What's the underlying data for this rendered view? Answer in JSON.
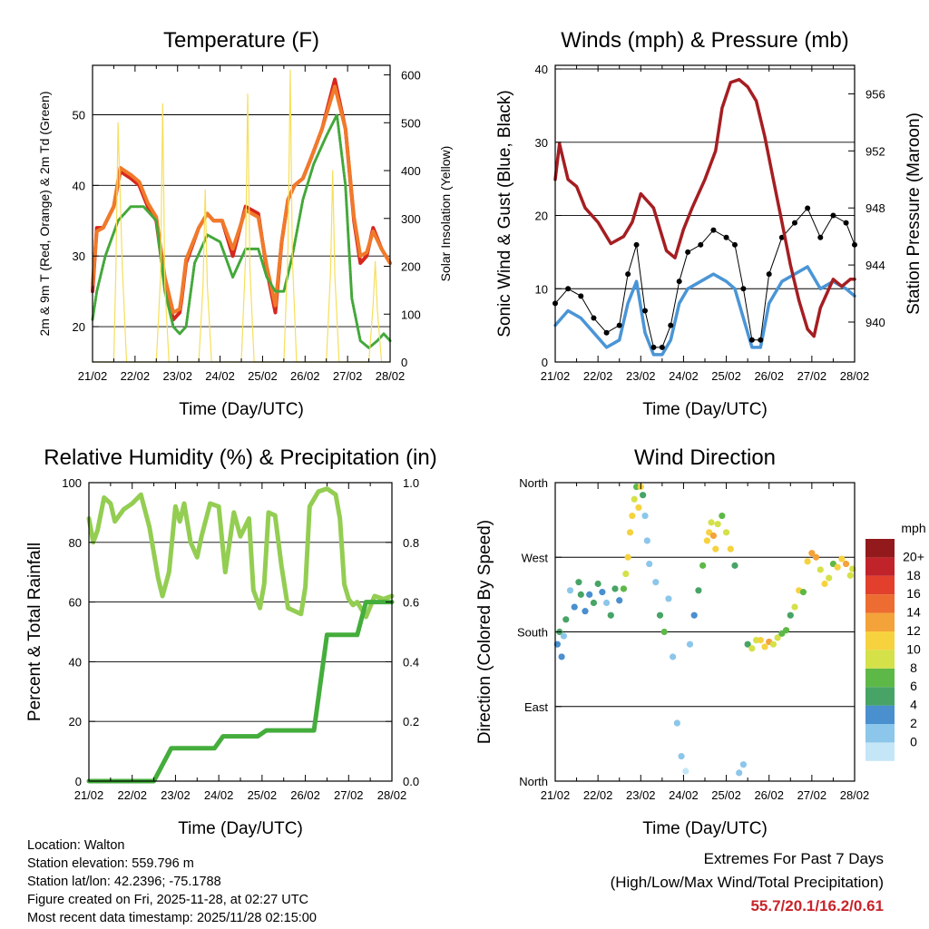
{
  "chart_data": [
    {
      "type": "line",
      "title": "Temperature (F)",
      "xlabel": "Time (Day/UTC)",
      "ylabel": "2m & 9m T (Red, Orange) & 2m Td (Green)",
      "ylabel_right": "Solar Insolation (Yellow)",
      "x_ticks": [
        "21/02",
        "22/02",
        "23/02",
        "24/02",
        "25/02",
        "26/02",
        "27/02",
        "28/02"
      ],
      "xlim": [
        0,
        7
      ],
      "ylim": [
        15,
        57
      ],
      "y_ticks": [
        20,
        30,
        40,
        50
      ],
      "ylim_right": [
        0,
        620
      ],
      "y_ticks_right": [
        0,
        100,
        200,
        300,
        400,
        500,
        600
      ],
      "series": [
        {
          "name": "2m T",
          "color": "#d7261e",
          "x": [
            0,
            0.1,
            0.25,
            0.5,
            0.65,
            0.9,
            1.1,
            1.3,
            1.5,
            1.7,
            1.9,
            2.05,
            2.1,
            2.2,
            2.5,
            2.7,
            2.85,
            3.05,
            3.3,
            3.6,
            3.9,
            4.1,
            4.3,
            4.45,
            4.6,
            4.75,
            4.95,
            5.15,
            5.4,
            5.7,
            5.95,
            6.15,
            6.3,
            6.45,
            6.6,
            6.8,
            7.0
          ],
          "values": [
            25,
            34,
            34,
            37,
            42,
            41,
            40,
            37,
            35,
            26,
            21,
            22,
            24,
            29,
            34,
            36,
            35,
            35,
            30,
            37,
            36,
            28,
            22,
            32,
            38,
            40,
            41,
            44,
            48,
            55,
            48,
            35,
            29,
            30,
            34,
            31,
            29
          ]
        },
        {
          "name": "9m T",
          "color": "#f07a2a",
          "x": [
            0,
            0.1,
            0.25,
            0.5,
            0.65,
            0.9,
            1.1,
            1.3,
            1.5,
            1.7,
            1.9,
            2.05,
            2.1,
            2.2,
            2.5,
            2.7,
            2.85,
            3.05,
            3.3,
            3.6,
            3.9,
            4.1,
            4.3,
            4.45,
            4.6,
            4.75,
            4.95,
            5.15,
            5.4,
            5.7,
            5.95,
            6.15,
            6.3,
            6.45,
            6.6,
            6.8,
            7.0
          ],
          "values": [
            26,
            33.5,
            34,
            37,
            42.5,
            41.5,
            40.5,
            37.5,
            35.5,
            27,
            22,
            22.5,
            24.5,
            29.5,
            34,
            36,
            35,
            35,
            31,
            36.5,
            35.5,
            28.5,
            23,
            32,
            38,
            40,
            41,
            44,
            48,
            54,
            48,
            35.5,
            30,
            30.5,
            33.5,
            31,
            29
          ]
        },
        {
          "name": "2m Td",
          "color": "#43a83a",
          "x": [
            0,
            0.1,
            0.3,
            0.6,
            0.9,
            1.2,
            1.5,
            1.7,
            1.9,
            2.05,
            2.2,
            2.4,
            2.7,
            3.0,
            3.3,
            3.6,
            3.9,
            4.1,
            4.3,
            4.5,
            4.7,
            4.95,
            5.2,
            5.5,
            5.75,
            5.95,
            6.1,
            6.3,
            6.5,
            6.7,
            6.85,
            7.0
          ],
          "values": [
            21,
            25,
            30,
            35,
            37,
            37,
            35,
            25,
            20,
            19,
            20,
            29,
            33,
            32,
            27,
            31,
            31,
            27,
            25,
            25,
            30,
            38,
            43,
            47,
            50,
            40,
            24,
            18,
            17,
            18,
            19,
            18
          ]
        },
        {
          "name": "Solar Insolation",
          "color": "#f6df5a",
          "axis": "right",
          "x": [
            0,
            0.5,
            0.55,
            0.6,
            0.7,
            0.8,
            1.5,
            1.6,
            1.65,
            1.7,
            1.8,
            2.5,
            2.6,
            2.65,
            2.7,
            2.8,
            3.5,
            3.6,
            3.65,
            3.7,
            3.8,
            4.5,
            4.6,
            4.65,
            4.7,
            4.8,
            5.5,
            5.6,
            5.65,
            5.7,
            5.8,
            6.5,
            6.6,
            6.65,
            6.7,
            6.8,
            7.0
          ],
          "values": [
            0,
            0,
            200,
            500,
            200,
            0,
            0,
            180,
            540,
            160,
            0,
            0,
            160,
            360,
            160,
            0,
            0,
            220,
            560,
            200,
            0,
            0,
            240,
            610,
            220,
            0,
            0,
            190,
            400,
            180,
            0,
            0,
            120,
            210,
            110,
            0,
            0
          ]
        }
      ]
    },
    {
      "type": "line",
      "title": "Winds (mph) & Pressure (mb)",
      "xlabel": "Time (Day/UTC)",
      "ylabel": "Sonic Wind & Gust (Blue, Black)",
      "ylabel_right": "Station Pressure (Maroon)",
      "x_ticks": [
        "21/02",
        "22/02",
        "23/02",
        "24/02",
        "25/02",
        "26/02",
        "27/02",
        "28/02"
      ],
      "xlim": [
        0,
        7
      ],
      "ylim": [
        0,
        40.5
      ],
      "y_ticks": [
        0,
        10,
        20,
        30,
        40
      ],
      "ylim_right": [
        937.2,
        958
      ],
      "y_ticks_right": [
        940,
        944,
        948,
        952,
        956
      ],
      "series": [
        {
          "name": "Sonic Wind",
          "color": "#4a95d6",
          "x": [
            0,
            0.3,
            0.6,
            0.9,
            1.2,
            1.5,
            1.7,
            1.9,
            2.1,
            2.3,
            2.5,
            2.7,
            2.9,
            3.1,
            3.4,
            3.7,
            4.0,
            4.2,
            4.4,
            4.6,
            4.8,
            5.0,
            5.3,
            5.6,
            5.9,
            6.2,
            6.5,
            6.8,
            7.0
          ],
          "values": [
            5,
            7,
            6,
            4,
            2,
            3,
            8,
            11,
            4,
            1,
            1,
            3,
            8,
            10,
            11,
            12,
            11,
            10,
            6,
            2,
            2,
            8,
            11,
            12,
            13,
            10,
            11,
            10,
            9
          ]
        },
        {
          "name": "Gust",
          "color": "#000000",
          "x": [
            0,
            0.3,
            0.6,
            0.9,
            1.2,
            1.5,
            1.7,
            1.9,
            2.1,
            2.3,
            2.5,
            2.7,
            2.9,
            3.1,
            3.4,
            3.7,
            4.0,
            4.2,
            4.4,
            4.6,
            4.8,
            5.0,
            5.3,
            5.6,
            5.9,
            6.2,
            6.5,
            6.8,
            7.0
          ],
          "values": [
            8,
            10,
            9,
            6,
            4,
            5,
            12,
            16,
            7,
            2,
            2,
            5,
            11,
            15,
            16,
            18,
            17,
            16,
            10,
            3,
            3,
            12,
            17,
            19,
            21,
            17,
            20,
            19,
            16
          ]
        },
        {
          "name": "Station Pressure",
          "color": "#a51e22",
          "axis": "right",
          "x": [
            0,
            0.1,
            0.3,
            0.5,
            0.7,
            1.0,
            1.3,
            1.6,
            1.8,
            2.0,
            2.3,
            2.6,
            2.8,
            3.0,
            3.2,
            3.5,
            3.75,
            3.9,
            4.1,
            4.3,
            4.5,
            4.7,
            4.9,
            5.1,
            5.3,
            5.5,
            5.7,
            5.9,
            6.05,
            6.2,
            6.35,
            6.5,
            6.7,
            6.9,
            7.0
          ],
          "values": [
            950,
            952.5,
            950,
            949.5,
            948,
            947,
            945.5,
            946,
            947,
            949,
            948,
            945,
            944.5,
            946.5,
            948,
            950,
            952,
            955,
            956.8,
            957,
            956.5,
            955.5,
            953,
            950,
            947,
            944,
            941.5,
            939.5,
            939,
            941,
            942,
            943,
            942.5,
            943,
            943
          ]
        }
      ]
    },
    {
      "type": "line",
      "title": "Relative Humidity (%) & Precipitation (in)",
      "xlabel": "Time (Day/UTC)",
      "ylabel": "Percent & Total Rainfall",
      "x_ticks": [
        "21/02",
        "22/02",
        "23/02",
        "24/02",
        "25/02",
        "26/02",
        "27/02",
        "28/02"
      ],
      "xlim": [
        0,
        7
      ],
      "ylim": [
        0,
        100
      ],
      "y_ticks": [
        0,
        20,
        40,
        60,
        80,
        100
      ],
      "ylim_right": [
        0,
        1.0
      ],
      "y_ticks_right": [
        "0.0",
        "0.2",
        "0.4",
        "0.6",
        "0.8",
        "1.0"
      ],
      "series": [
        {
          "name": "Relative Humidity",
          "color": "#93cd52",
          "x": [
            0,
            0.1,
            0.2,
            0.35,
            0.5,
            0.6,
            0.8,
            1.0,
            1.2,
            1.4,
            1.6,
            1.7,
            1.85,
            2.0,
            2.1,
            2.2,
            2.35,
            2.5,
            2.6,
            2.8,
            3.0,
            3.15,
            3.35,
            3.5,
            3.7,
            3.8,
            3.95,
            4.05,
            4.15,
            4.3,
            4.45,
            4.6,
            4.75,
            4.9,
            5.0,
            5.1,
            5.3,
            5.5,
            5.7,
            5.8,
            5.9,
            6.0,
            6.1,
            6.2,
            6.4,
            6.6,
            6.8,
            7.0
          ],
          "values": [
            88,
            80,
            84,
            95,
            93,
            87,
            91,
            93,
            96,
            85,
            68,
            62,
            70,
            92,
            87,
            93,
            80,
            75,
            82,
            93,
            92,
            70,
            90,
            82,
            88,
            64,
            58,
            66,
            90,
            89,
            72,
            58,
            57,
            56,
            65,
            92,
            97,
            98,
            96,
            88,
            66,
            61,
            59,
            60,
            55,
            62,
            61,
            62
          ]
        },
        {
          "name": "Total Rainfall",
          "color": "#44ad3c",
          "axis": "right",
          "x": [
            0,
            1.5,
            1.9,
            2.1,
            2.9,
            3.1,
            3.9,
            4.1,
            4.9,
            5.2,
            5.5,
            6.2,
            6.4,
            7.0
          ],
          "values": [
            0.0,
            0.0,
            0.11,
            0.11,
            0.11,
            0.15,
            0.15,
            0.17,
            0.17,
            0.17,
            0.49,
            0.49,
            0.6,
            0.6
          ]
        }
      ]
    },
    {
      "type": "scatter",
      "title": "Wind Direction",
      "xlabel": "Time (Day/UTC)",
      "ylabel": "Direction (Colored By Speed)",
      "x_ticks": [
        "21/02",
        "22/02",
        "23/02",
        "24/02",
        "25/02",
        "26/02",
        "27/02",
        "28/02"
      ],
      "xlim": [
        0,
        7
      ],
      "ylim": [
        0,
        360
      ],
      "y_ticks": [
        "North",
        "East",
        "South",
        "West",
        "North"
      ],
      "y_tick_values": [
        0,
        90,
        180,
        270,
        360
      ],
      "colorbar_title": "mph",
      "colorbar_labels": [
        "0",
        "2",
        "4",
        "6",
        "8",
        "10",
        "12",
        "14",
        "16",
        "18",
        "20+"
      ],
      "colorbar_colors": [
        "#c4e6f7",
        "#8cc6ea",
        "#4a8fce",
        "#47a466",
        "#5eb847",
        "#d4e149",
        "#f6d23f",
        "#f4a23a",
        "#ed6c31",
        "#e2402d",
        "#c1232a",
        "#921a1d"
      ],
      "x": [
        0.05,
        0.1,
        0.15,
        0.2,
        0.25,
        0.35,
        0.45,
        0.55,
        0.6,
        0.7,
        0.8,
        0.9,
        1.0,
        1.1,
        1.2,
        1.3,
        1.4,
        1.5,
        1.6,
        1.65,
        1.7,
        1.75,
        1.8,
        1.85,
        1.9,
        1.95,
        2.0,
        2.05,
        2.1,
        2.15,
        2.2,
        2.35,
        2.45,
        2.55,
        2.65,
        2.75,
        2.85,
        2.95,
        3.05,
        3.15,
        3.25,
        3.35,
        3.45,
        3.55,
        3.6,
        3.65,
        3.7,
        3.75,
        3.8,
        3.9,
        4.0,
        4.1,
        4.2,
        4.3,
        4.4,
        4.5,
        4.6,
        4.7,
        4.8,
        4.9,
        5.0,
        5.1,
        5.2,
        5.3,
        5.4,
        5.5,
        5.6,
        5.7,
        5.8,
        5.9,
        6.0,
        6.1,
        6.2,
        6.3,
        6.4,
        6.5,
        6.6,
        6.7,
        6.8,
        6.9,
        6.95
      ],
      "values": [
        165,
        180,
        150,
        175,
        195,
        230,
        210,
        240,
        225,
        205,
        225,
        215,
        238,
        228,
        215,
        200,
        232,
        218,
        232,
        250,
        270,
        300,
        320,
        340,
        355,
        330,
        355,
        345,
        320,
        290,
        262,
        240,
        200,
        180,
        220,
        150,
        70,
        30,
        12,
        165,
        200,
        230,
        260,
        290,
        300,
        312,
        296,
        280,
        310,
        320,
        300,
        280,
        260,
        10,
        20,
        165,
        160,
        170,
        170,
        162,
        168,
        165,
        173,
        178,
        182,
        200,
        210,
        230,
        228,
        265,
        275,
        270,
        255,
        238,
        245,
        262,
        258,
        268,
        262,
        248,
        256
      ],
      "speeds": [
        3,
        6,
        4,
        2,
        5,
        2,
        4,
        6,
        5,
        3,
        4,
        6,
        5,
        4,
        2,
        5,
        6,
        3,
        7,
        10,
        12,
        11,
        12,
        10,
        8,
        12,
        11,
        6,
        2,
        1,
        2,
        1,
        6,
        7,
        1,
        1,
        2,
        2,
        0,
        1,
        4,
        6,
        8,
        11,
        12,
        10,
        13,
        12,
        9,
        8,
        10,
        11,
        6,
        2,
        1,
        6,
        9,
        10,
        12,
        11,
        14,
        10,
        9,
        8,
        7,
        6,
        10,
        11,
        8,
        12,
        13,
        14,
        10,
        12,
        9,
        8,
        12,
        11,
        13,
        9,
        10
      ]
    }
  ],
  "info": {
    "location": "Location: Walton",
    "elevation": "Station elevation: 559.796 m",
    "latlon": "Station lat/lon: 42.2396; -75.1788",
    "created": "Figure created on Fri, 2025-11-28, at 02:27 UTC",
    "recent": "Most recent data timestamp: 2025/11/28 02:15:00"
  },
  "extremes": {
    "title": "Extremes For Past 7 Days",
    "subtitle": "(High/Low/Max Wind/Total Precipitation)",
    "values": "55.7/20.1/16.2/0.61"
  }
}
